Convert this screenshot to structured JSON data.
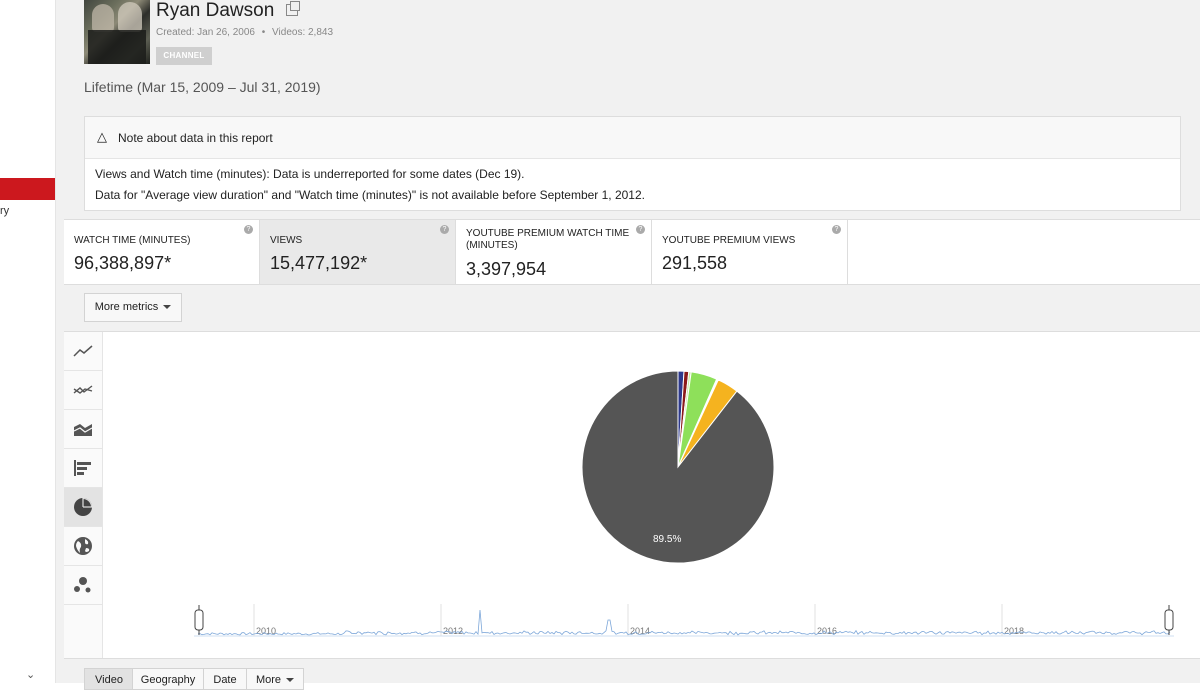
{
  "left_rail": {
    "partial_text": "ry"
  },
  "channel": {
    "name": "Ryan Dawson",
    "created": "Created: Jan 26, 2006",
    "separator": "•",
    "videos": "Videos: 2,843",
    "badge": "CHANNEL"
  },
  "date_range": "Lifetime (Mar 15, 2009 – Jul 31, 2019)",
  "note": {
    "title": "Note about data in this report",
    "lines": [
      "Views and Watch time (minutes): Data is underreported for some dates (Dec 19).",
      "Data for \"Average view duration\" and \"Watch time (minutes)\" is not available before September 1, 2012."
    ]
  },
  "metrics": [
    {
      "label": "WATCH TIME (MINUTES)",
      "value": "96,388,897*",
      "selected": false
    },
    {
      "label": "VIEWS",
      "value": "15,477,192*",
      "selected": true
    },
    {
      "label": "YOUTUBE PREMIUM WATCH TIME (MINUTES)",
      "value": "3,397,954",
      "selected": false
    },
    {
      "label": "YOUTUBE PREMIUM VIEWS",
      "value": "291,558",
      "selected": false
    }
  ],
  "more_metrics_label": "More metrics",
  "chart_tools": [
    "line-chart-icon",
    "multi-line-chart-icon",
    "stacked-area-icon",
    "bar-chart-icon",
    "pie-chart-icon",
    "globe-icon",
    "bubble-chart-icon"
  ],
  "chart_data": {
    "type": "pie",
    "slices": [
      {
        "percent": 89.5,
        "color": "#555555",
        "label": "89.5%"
      },
      {
        "percent": 1.0,
        "color": "#2e3a8c",
        "label": ""
      },
      {
        "percent": 0.8,
        "color": "#8b1a1a",
        "label": ""
      },
      {
        "percent": 0.4,
        "color": "#c7e9a3",
        "label": ""
      },
      {
        "percent": 4.4,
        "color": "#8ee05a",
        "label": ""
      },
      {
        "percent": 0.3,
        "color": "#ffffff",
        "label": ""
      },
      {
        "percent": 3.6,
        "color": "#f5b31f",
        "label": ""
      }
    ]
  },
  "timeline": {
    "year_labels": [
      "2010",
      "2012",
      "2014",
      "2016",
      "2018"
    ],
    "line_color": "#7da7d9"
  },
  "tabs": [
    {
      "label": "Video",
      "selected": true
    },
    {
      "label": "Geography",
      "selected": false
    },
    {
      "label": "Date",
      "selected": false
    },
    {
      "label": "More",
      "selected": false
    }
  ]
}
